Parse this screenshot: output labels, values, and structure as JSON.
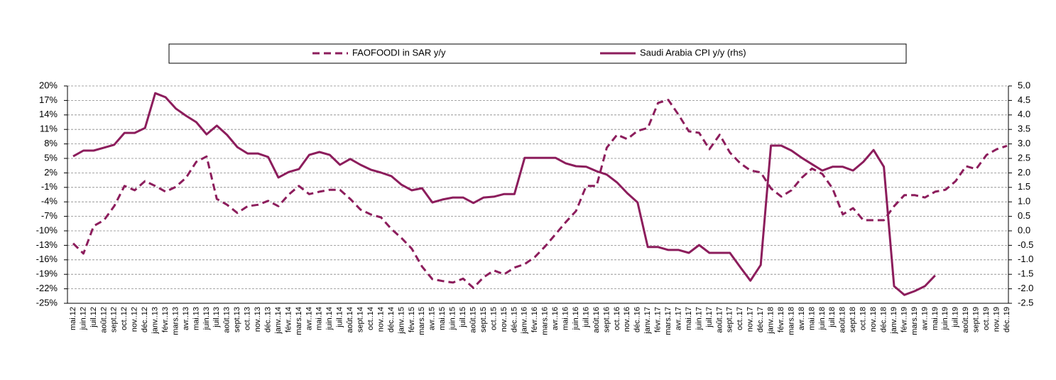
{
  "chart_data": {
    "type": "line",
    "legend": "top",
    "grid": true,
    "categories": [
      "mai.12",
      "juin.12",
      "juil.12",
      "août.12",
      "sept.12",
      "oct..12",
      "nov..12",
      "déc..12",
      "janv..13",
      "févr..13",
      "mars.13",
      "avr..13",
      "mai.13",
      "juin.13",
      "juil.13",
      "août.13",
      "sept.13",
      "oct..13",
      "nov..13",
      "déc..13",
      "janv..14",
      "févr..14",
      "mars.14",
      "avr..14",
      "mai.14",
      "juin.14",
      "juil.14",
      "août.14",
      "sept.14",
      "oct..14",
      "nov..14",
      "déc..14",
      "janv..15",
      "févr..15",
      "mars.15",
      "avr..15",
      "mai.15",
      "juin.15",
      "juil.15",
      "août.15",
      "sept.15",
      "oct..15",
      "nov..15",
      "déc..15",
      "janv..16",
      "févr..16",
      "mars.16",
      "avr..16",
      "mai.16",
      "juin.16",
      "juil.16",
      "août.16",
      "sept.16",
      "oct..16",
      "nov..16",
      "déc..16",
      "janv..17",
      "févr..17",
      "mars.17",
      "avr..17",
      "mai.17",
      "juin.17",
      "juil.17",
      "août.17",
      "sept.17",
      "oct..17",
      "nov..17",
      "déc..17",
      "janv..18",
      "févr..18",
      "mars.18",
      "avr..18",
      "mai.18",
      "juin.18",
      "juil.18",
      "août.18",
      "sept.18",
      "oct..18",
      "nov..18",
      "déc..18",
      "janv..19",
      "févr..19",
      "mars.19",
      "avr..19",
      "mai.19",
      "juin.19",
      "juil.19",
      "août.19",
      "sept.19",
      "oct..19",
      "nov..19",
      "déc..19"
    ],
    "series": [
      {
        "name": "FAOFOODI in SAR y/y",
        "color": "#8c1d5c",
        "dash": true,
        "axis": "y",
        "values": [
          -12.6,
          -14.7,
          -9,
          -7.8,
          -4.9,
          -0.7,
          -1.6,
          0.3,
          -0.7,
          -1.9,
          -0.9,
          1,
          4.3,
          5.4,
          -3.4,
          -4.6,
          -6.3,
          -4.9,
          -4.6,
          -3.8,
          -4.9,
          -2.5,
          -0.7,
          -2.4,
          -1.9,
          -1.5,
          -1.5,
          -3.4,
          -5.6,
          -6.6,
          -7.2,
          -9.6,
          -11.5,
          -13.7,
          -17.4,
          -20,
          -20.4,
          -20.7,
          -19.9,
          -21.8,
          -19.6,
          -18.2,
          -19,
          -17.6,
          -16.9,
          -15.4,
          -13.2,
          -10.7,
          -8.2,
          -5.9,
          -0.7,
          -0.7,
          7.2,
          9.9,
          9,
          10.7,
          11.3,
          16.5,
          17.1,
          14,
          10.6,
          10.3,
          6.9,
          9.9,
          6.2,
          4,
          2.5,
          2.1,
          -1.2,
          -2.9,
          -1.6,
          1,
          2.9,
          1.8,
          -1.2,
          -6.6,
          -5.3,
          -7.8,
          -7.8,
          -7.8,
          -4.9,
          -2.6,
          -2.6,
          -3.1,
          -1.9,
          -1.5,
          0.3,
          3.4,
          2.8,
          5.7,
          6.9,
          7.6
        ]
      },
      {
        "name": "Saudi Arabia CPI y/y (rhs)",
        "color": "#8c1d5c",
        "dash": false,
        "axis": "y2",
        "values": [
          2.57,
          2.77,
          2.77,
          2.87,
          2.97,
          3.38,
          3.38,
          3.55,
          4.75,
          4.61,
          4.22,
          3.97,
          3.75,
          3.33,
          3.63,
          3.31,
          2.89,
          2.67,
          2.67,
          2.55,
          1.84,
          2.03,
          2.13,
          2.62,
          2.72,
          2.62,
          2.28,
          2.48,
          2.28,
          2.11,
          2.01,
          1.89,
          1.59,
          1.4,
          1.47,
          0.98,
          1.08,
          1.15,
          1.15,
          0.96,
          1.15,
          1.18,
          1.27,
          1.27,
          2.52,
          2.52,
          2.52,
          2.52,
          2.33,
          2.23,
          2.21,
          2.06,
          1.94,
          1.67,
          1.3,
          0.98,
          -0.56,
          -0.56,
          -0.66,
          -0.66,
          -0.76,
          -0.49,
          -0.76,
          -0.76,
          -0.76,
          -1.25,
          -1.72,
          -1.18,
          2.94,
          2.94,
          2.77,
          2.52,
          2.3,
          2.08,
          2.21,
          2.21,
          2.08,
          2.38,
          2.79,
          2.21,
          -1.91,
          -2.21,
          -2.08,
          -1.91,
          -1.54,
          null,
          null,
          null,
          null,
          null,
          null,
          null
        ]
      }
    ],
    "ylim": [
      -25,
      20
    ],
    "yticks": [
      {
        "value": 20,
        "label": "20%"
      },
      {
        "value": 17,
        "label": "17%"
      },
      {
        "value": 14,
        "label": "14%"
      },
      {
        "value": 11,
        "label": "11%"
      },
      {
        "value": 8,
        "label": "8%"
      },
      {
        "value": 5,
        "label": "5%"
      },
      {
        "value": 2,
        "label": "2%"
      },
      {
        "value": -1,
        "label": "-1%"
      },
      {
        "value": -4,
        "label": "-4%"
      },
      {
        "value": -7,
        "label": "-7%"
      },
      {
        "value": -10,
        "label": "-10%"
      },
      {
        "value": -13,
        "label": "-13%"
      },
      {
        "value": -16,
        "label": "-16%"
      },
      {
        "value": -19,
        "label": "-19%"
      },
      {
        "value": -22,
        "label": "-22%"
      },
      {
        "value": -25,
        "label": "-25%"
      }
    ],
    "y2lim": [
      -2.5,
      5
    ],
    "y2ticks": [
      {
        "value": 5,
        "label": "5.0"
      },
      4.5,
      {
        "value": 4,
        "label": "4.0"
      },
      3.5,
      {
        "value": 3,
        "label": "3.0"
      },
      2.5,
      {
        "value": 2,
        "label": "2.0"
      },
      1.5,
      {
        "value": 1,
        "label": "1.0"
      },
      0.5,
      {
        "value": 0,
        "label": "0.0"
      },
      -0.5,
      {
        "value": -1,
        "label": "-1.0"
      },
      -1.5,
      {
        "value": -2,
        "label": "-2.0"
      },
      -2.5
    ]
  }
}
